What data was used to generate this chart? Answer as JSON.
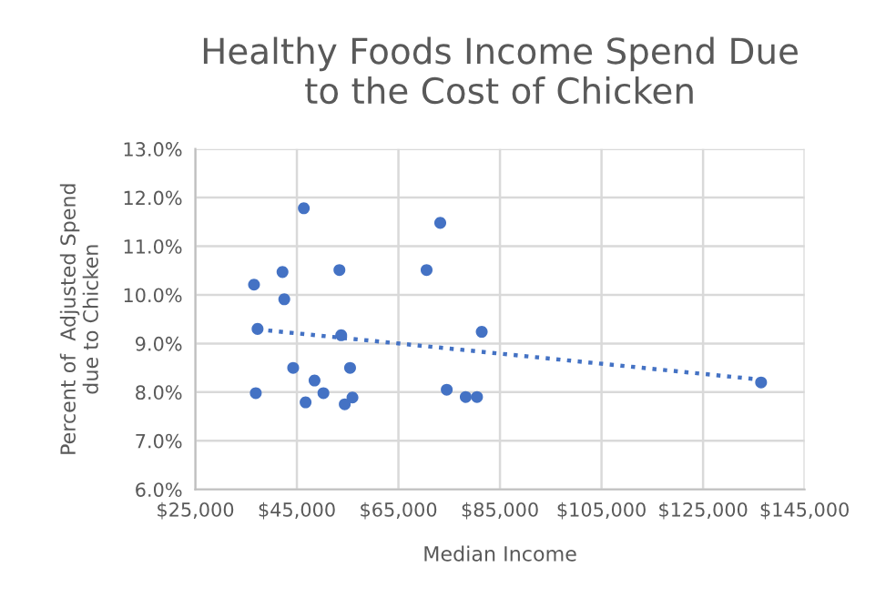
{
  "chart_data": {
    "type": "scatter",
    "title": "Healthy Foods Income Spend Due\nto the Cost of Chicken",
    "xlabel": "Median Income",
    "ylabel": "Percent of  Adjusted Spend\ndue to Chicken",
    "series": [
      {
        "color": "#4472c4",
        "marker": "circle",
        "x": [
          46370,
          73240,
          42170,
          53380,
          70550,
          36560,
          42520,
          37260,
          53730,
          81410,
          44270,
          55480,
          48480,
          36910,
          50230,
          46720,
          54430,
          55950,
          74520,
          78260,
          80480,
          136430
        ],
        "values": [
          11.78,
          11.48,
          10.47,
          10.51,
          10.51,
          10.21,
          9.91,
          9.3,
          9.17,
          9.24,
          8.5,
          8.5,
          8.24,
          7.98,
          7.98,
          7.79,
          7.75,
          7.89,
          8.05,
          7.9,
          7.9,
          8.2
        ]
      },
      {
        "type": "line",
        "color": "#4472c4",
        "line_style": "dotted",
        "x": [
          37260,
          135140
        ],
        "values": [
          9.29,
          8.27
        ]
      }
    ],
    "xlim": [
      25000,
      145000
    ],
    "xticks": [
      {
        "value": 25000,
        "label": "$25,000"
      },
      {
        "value": 45000,
        "label": "$45,000"
      },
      {
        "value": 65000,
        "label": "$65,000"
      },
      {
        "value": 85000,
        "label": "$85,000"
      },
      {
        "value": 105000,
        "label": "$105,000"
      },
      {
        "value": 125000,
        "label": "$125,000"
      },
      {
        "value": 145000,
        "label": "$145,000"
      }
    ],
    "ylim": [
      6,
      13
    ],
    "yticks": [
      {
        "value": 6,
        "label": "6.0%"
      },
      {
        "value": 7,
        "label": "7.0%"
      },
      {
        "value": 8,
        "label": "8.0%"
      },
      {
        "value": 9,
        "label": "9.0%"
      },
      {
        "value": 10,
        "label": "10.0%"
      },
      {
        "value": 11,
        "label": "11.0%"
      },
      {
        "value": 12,
        "label": "12.0%"
      },
      {
        "value": 13,
        "label": "13.0%"
      }
    ],
    "grid": true,
    "legend": false
  }
}
